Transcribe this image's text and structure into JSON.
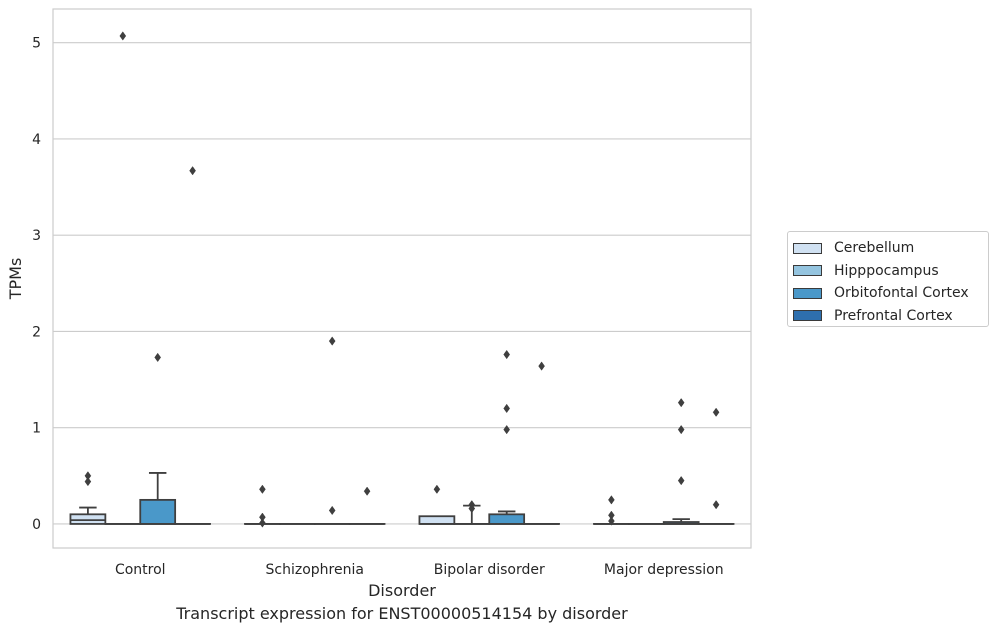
{
  "chart_data": {
    "type": "box",
    "ylabel": "TPMs",
    "xlabel": "Disorder",
    "caption": "Transcript expression for ENST00000514154 by disorder",
    "ylim": [
      -0.25,
      5.35
    ],
    "yticks": [
      0,
      1,
      2,
      3,
      4,
      5
    ],
    "grid": "horizontal",
    "legend_position": "right",
    "categories": [
      "Control",
      "Schizophrenia",
      "Bipolar disorder",
      "Major depression"
    ],
    "series": [
      {
        "name": "Cerebellum",
        "color": "#d0e1f2",
        "boxes": [
          {
            "q1": 0.0,
            "median": 0.04,
            "q3": 0.1,
            "whisker_low": 0.0,
            "whisker_high": 0.17,
            "outliers": [
              0.5,
              0.44
            ]
          },
          {
            "q1": 0.0,
            "median": 0.0,
            "q3": 0.0,
            "whisker_low": 0.0,
            "whisker_high": 0.0,
            "outliers": [
              0.36,
              0.07,
              0.01
            ]
          },
          {
            "q1": 0.0,
            "median": 0.0,
            "q3": 0.08,
            "whisker_low": 0.0,
            "whisker_high": 0.08,
            "outliers": [
              0.36
            ]
          },
          {
            "q1": 0.0,
            "median": 0.0,
            "q3": 0.0,
            "whisker_low": 0.0,
            "whisker_high": 0.0,
            "outliers": [
              0.25,
              0.09,
              0.03
            ]
          }
        ]
      },
      {
        "name": "Hipppocampus",
        "color": "#94c4df",
        "boxes": [
          {
            "q1": 0.0,
            "median": 0.0,
            "q3": 0.0,
            "whisker_low": 0.0,
            "whisker_high": 0.0,
            "outliers": [
              5.07
            ]
          },
          {
            "q1": 0.0,
            "median": 0.0,
            "q3": 0.0,
            "whisker_low": 0.0,
            "whisker_high": 0.0,
            "outliers": []
          },
          {
            "q1": 0.0,
            "median": 0.0,
            "q3": 0.0,
            "whisker_low": 0.0,
            "whisker_high": 0.19,
            "outliers": [
              0.2,
              0.16
            ]
          },
          {
            "q1": 0.0,
            "median": 0.0,
            "q3": 0.0,
            "whisker_low": 0.0,
            "whisker_high": 0.0,
            "outliers": []
          }
        ]
      },
      {
        "name": "Orbitofontal Cortex",
        "color": "#4a98c9",
        "boxes": [
          {
            "q1": 0.0,
            "median": 0.0,
            "q3": 0.25,
            "whisker_low": 0.0,
            "whisker_high": 0.53,
            "outliers": [
              1.73
            ]
          },
          {
            "q1": 0.0,
            "median": 0.0,
            "q3": 0.0,
            "whisker_low": 0.0,
            "whisker_high": 0.0,
            "outliers": [
              1.9,
              0.14
            ]
          },
          {
            "q1": 0.0,
            "median": 0.0,
            "q3": 0.1,
            "whisker_low": 0.0,
            "whisker_high": 0.13,
            "outliers": [
              1.76,
              1.2,
              0.98
            ]
          },
          {
            "q1": 0.0,
            "median": 0.0,
            "q3": 0.02,
            "whisker_low": 0.0,
            "whisker_high": 0.05,
            "outliers": [
              1.26,
              0.98,
              0.45
            ]
          }
        ]
      },
      {
        "name": "Prefrontal Cortex",
        "color": "#2e6fae",
        "boxes": [
          {
            "q1": 0.0,
            "median": 0.0,
            "q3": 0.0,
            "whisker_low": 0.0,
            "whisker_high": 0.0,
            "outliers": [
              3.67
            ]
          },
          {
            "q1": 0.0,
            "median": 0.0,
            "q3": 0.0,
            "whisker_low": 0.0,
            "whisker_high": 0.0,
            "outliers": [
              0.34
            ]
          },
          {
            "q1": 0.0,
            "median": 0.0,
            "q3": 0.0,
            "whisker_low": 0.0,
            "whisker_high": 0.0,
            "outliers": [
              1.64
            ]
          },
          {
            "q1": 0.0,
            "median": 0.0,
            "q3": 0.0,
            "whisker_low": 0.0,
            "whisker_high": 0.0,
            "outliers": [
              1.16,
              0.2
            ]
          }
        ]
      }
    ]
  }
}
